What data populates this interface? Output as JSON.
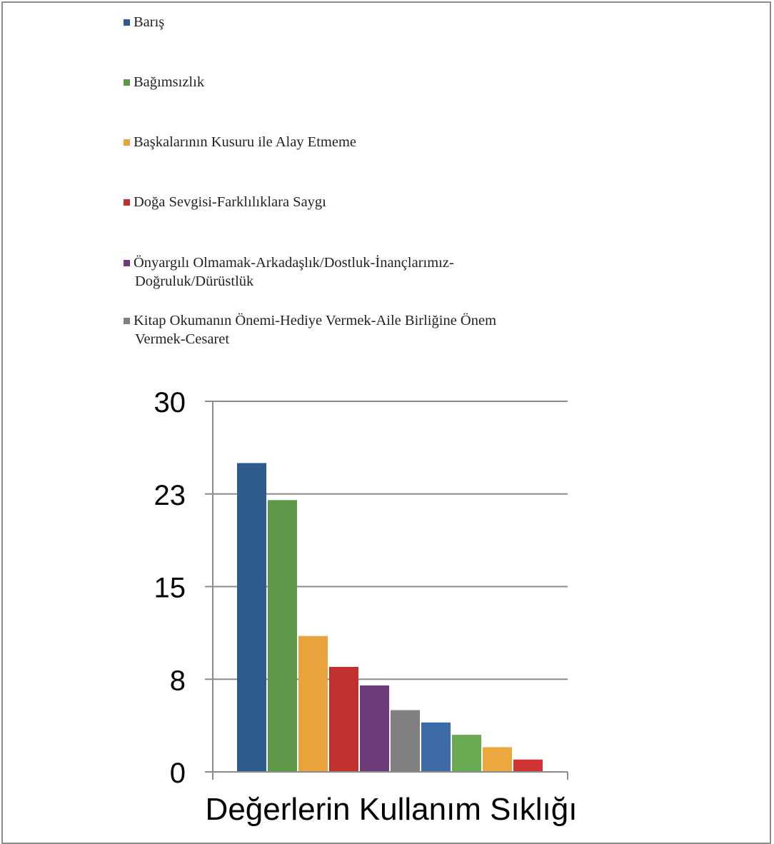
{
  "colors": {
    "blue": "#2e5a8c",
    "green": "#5e9747",
    "orange": "#e8a33c",
    "red": "#c0302e",
    "purple": "#6d3b7a",
    "gray": "#808080",
    "blue_light": "#3d6ba8",
    "green_light": "#6aaa52",
    "orange_light": "#eba83f",
    "red_light": "#d03335"
  },
  "legend": {
    "items": [
      {
        "label": "Barış",
        "color": "#2e5a8c"
      },
      {
        "label": "Bağımsızlık",
        "color": "#5e9747"
      },
      {
        "label": "Başkalarının Kusuru ile Alay Etmeme",
        "color": "#e8a33c"
      },
      {
        "label": "Doğa Sevgisi-Farklılıklara Saygı",
        "color": "#c0302e"
      },
      {
        "label": "Önyargılı Olmamak-Arkadaşlık/Dostluk-İnançlarımız-Doğruluk/Dürüstlük",
        "color": "#6d3b7a"
      },
      {
        "label": "Kitap Okumanın Önemi-Hediye Vermek-Aile Birliğine Önem Vermek-Cesaret",
        "color": "#808080"
      }
    ]
  },
  "chart_data": {
    "type": "bar",
    "xlabel": "Değerlerin Kullanım Sıklığı",
    "ylabel": "",
    "ylim": [
      0,
      30
    ],
    "yticks": [
      "0",
      "8",
      "15",
      "23",
      "30"
    ],
    "grid": true,
    "legend_position": "top",
    "values": [
      25,
      22,
      11,
      8.5,
      7,
      5,
      4,
      3,
      2,
      1
    ],
    "bar_colors": [
      "#2e5a8c",
      "#5e9747",
      "#e8a33c",
      "#c0302e",
      "#6d3b7a",
      "#808080",
      "#3d6ba8",
      "#6aaa52",
      "#eba83f",
      "#d03335"
    ]
  }
}
